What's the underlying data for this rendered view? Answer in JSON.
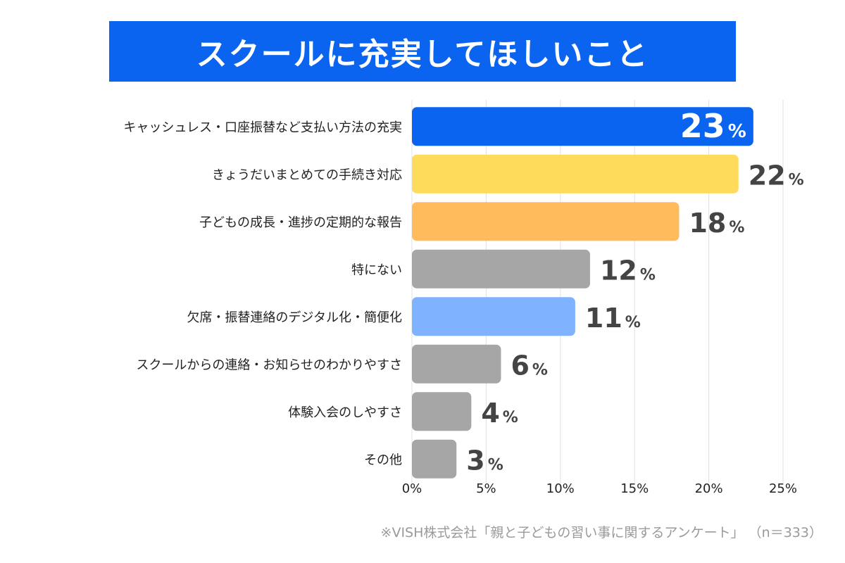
{
  "title": "スクールに充実してほしいこと",
  "source": "※VISH株式会社「親と子どもの習い事に関するアンケート」 （n＝333）",
  "colors": {
    "title_bg": "#0a64f0",
    "grid": "#e0e0e0",
    "axis_text": "#222222",
    "value_text": "#444444"
  },
  "chart_data": {
    "type": "bar",
    "orientation": "horizontal",
    "categories": [
      "キャッシュレス・口座振替など支払い方法の充実",
      "きょうだいまとめての手続き対応",
      "子どもの成長・進捗の定期的な報告",
      "特にない",
      "欠席・振替連絡のデジタル化・簡便化",
      "スクールからの連絡・お知らせのわかりやすさ",
      "体験入会のしやすさ",
      "その他"
    ],
    "values": [
      23,
      22,
      18,
      12,
      11,
      6,
      4,
      3
    ],
    "value_unit": "%",
    "bar_colors": [
      "#0a64f0",
      "#ffdb5c",
      "#ffbb5c",
      "#a6a6a6",
      "#7fb2ff",
      "#a6a6a6",
      "#a6a6a6",
      "#a6a6a6"
    ],
    "xlim": [
      0,
      25
    ],
    "xticks": [
      "0%",
      "5%",
      "10%",
      "15%",
      "20%",
      "25%"
    ],
    "grid": true
  }
}
